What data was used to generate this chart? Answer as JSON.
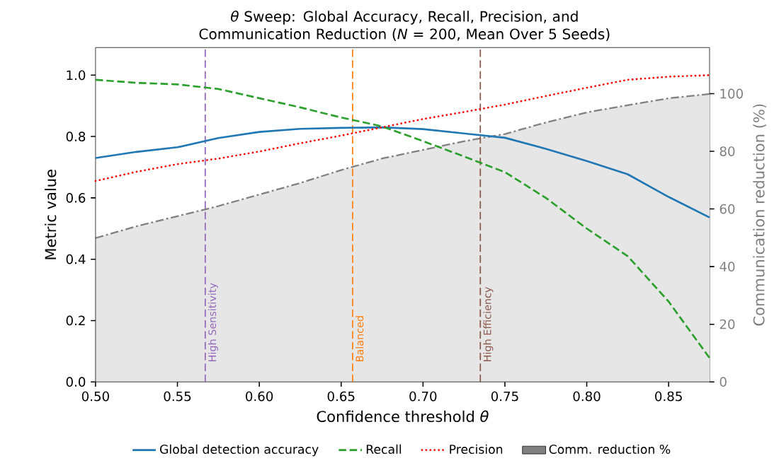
{
  "chart_data": {
    "type": "line",
    "title": "*θ* Sweep: Global Accuracy, Recall, Precision, and Communication Reduction (*N* = 200, Mean Over 5 Seeds)",
    "xlabel": "Confidence threshold *θ*",
    "ylabel": "Metric value",
    "y2label": "Communication reduction (%)",
    "x": [
      0.5,
      0.525,
      0.55,
      0.575,
      0.6,
      0.625,
      0.65,
      0.675,
      0.7,
      0.725,
      0.75,
      0.775,
      0.8,
      0.825,
      0.85,
      0.875
    ],
    "series": [
      {
        "name": "Global detection accuracy",
        "color": "#1f77b4",
        "line_style": "solid",
        "values": [
          0.73,
          0.75,
          0.765,
          0.795,
          0.815,
          0.825,
          0.828,
          0.83,
          0.824,
          0.81,
          0.796,
          0.76,
          0.72,
          0.677,
          0.603,
          0.536
        ]
      },
      {
        "name": "Recall",
        "color": "#2ca02c",
        "line_style": "dashed",
        "values": [
          0.985,
          0.975,
          0.97,
          0.955,
          0.925,
          0.895,
          0.862,
          0.833,
          0.785,
          0.735,
          0.684,
          0.6,
          0.5,
          0.41,
          0.262,
          0.078
        ]
      },
      {
        "name": "Precision",
        "color": "#ff0000",
        "line_style": "dotted",
        "values": [
          0.655,
          0.685,
          0.71,
          0.728,
          0.751,
          0.778,
          0.803,
          0.83,
          0.857,
          0.88,
          0.904,
          0.932,
          0.959,
          0.985,
          0.995,
          1.0
        ]
      },
      {
        "name": "Comm. reduction %",
        "type": "area",
        "axis": "y2",
        "color": "#808080",
        "line_style": "dashdot",
        "values": [
          49.9,
          54,
          57.5,
          61,
          65,
          69,
          73.5,
          77.5,
          80.5,
          83.5,
          86,
          90,
          93.5,
          96,
          98.4,
          99.9
        ]
      }
    ],
    "xlim": [
      0.5,
      0.875
    ],
    "xticks": [
      {
        "value": 0.5,
        "label": "0.50"
      },
      {
        "value": 0.55,
        "label": "0.55"
      },
      {
        "value": 0.6,
        "label": "0.60"
      },
      {
        "value": 0.65,
        "label": "0.65"
      },
      {
        "value": 0.7,
        "label": "0.70"
      },
      {
        "value": 0.75,
        "label": "0.75"
      },
      {
        "value": 0.8,
        "label": "0.80"
      },
      {
        "value": 0.85,
        "label": "0.85"
      }
    ],
    "ylim": [
      0,
      1.09
    ],
    "yticks": [
      {
        "value": 0,
        "label": "0.0"
      },
      {
        "value": 0.2,
        "label": "0.2"
      },
      {
        "value": 0.4,
        "label": "0.4"
      },
      {
        "value": 0.6,
        "label": "0.6"
      },
      {
        "value": 0.8,
        "label": "0.8"
      },
      {
        "value": 1.0,
        "label": "1.0"
      }
    ],
    "y2lim": [
      0,
      116
    ],
    "y2ticks": [
      0,
      20,
      40,
      60,
      80,
      100
    ],
    "ref_lines": [
      {
        "axis": "x",
        "value": 0.567,
        "label": "High Sensitivity",
        "color": "#9467bd",
        "line_style": "dashed"
      },
      {
        "axis": "x",
        "value": 0.657,
        "label": "Balanced",
        "color": "#ff7f0e",
        "line_style": "dashed"
      },
      {
        "axis": "x",
        "value": 0.735,
        "label": "High Efficiency",
        "color": "#8c564b",
        "line_style": "dashed"
      }
    ],
    "legend": "bottom",
    "grid": false
  }
}
